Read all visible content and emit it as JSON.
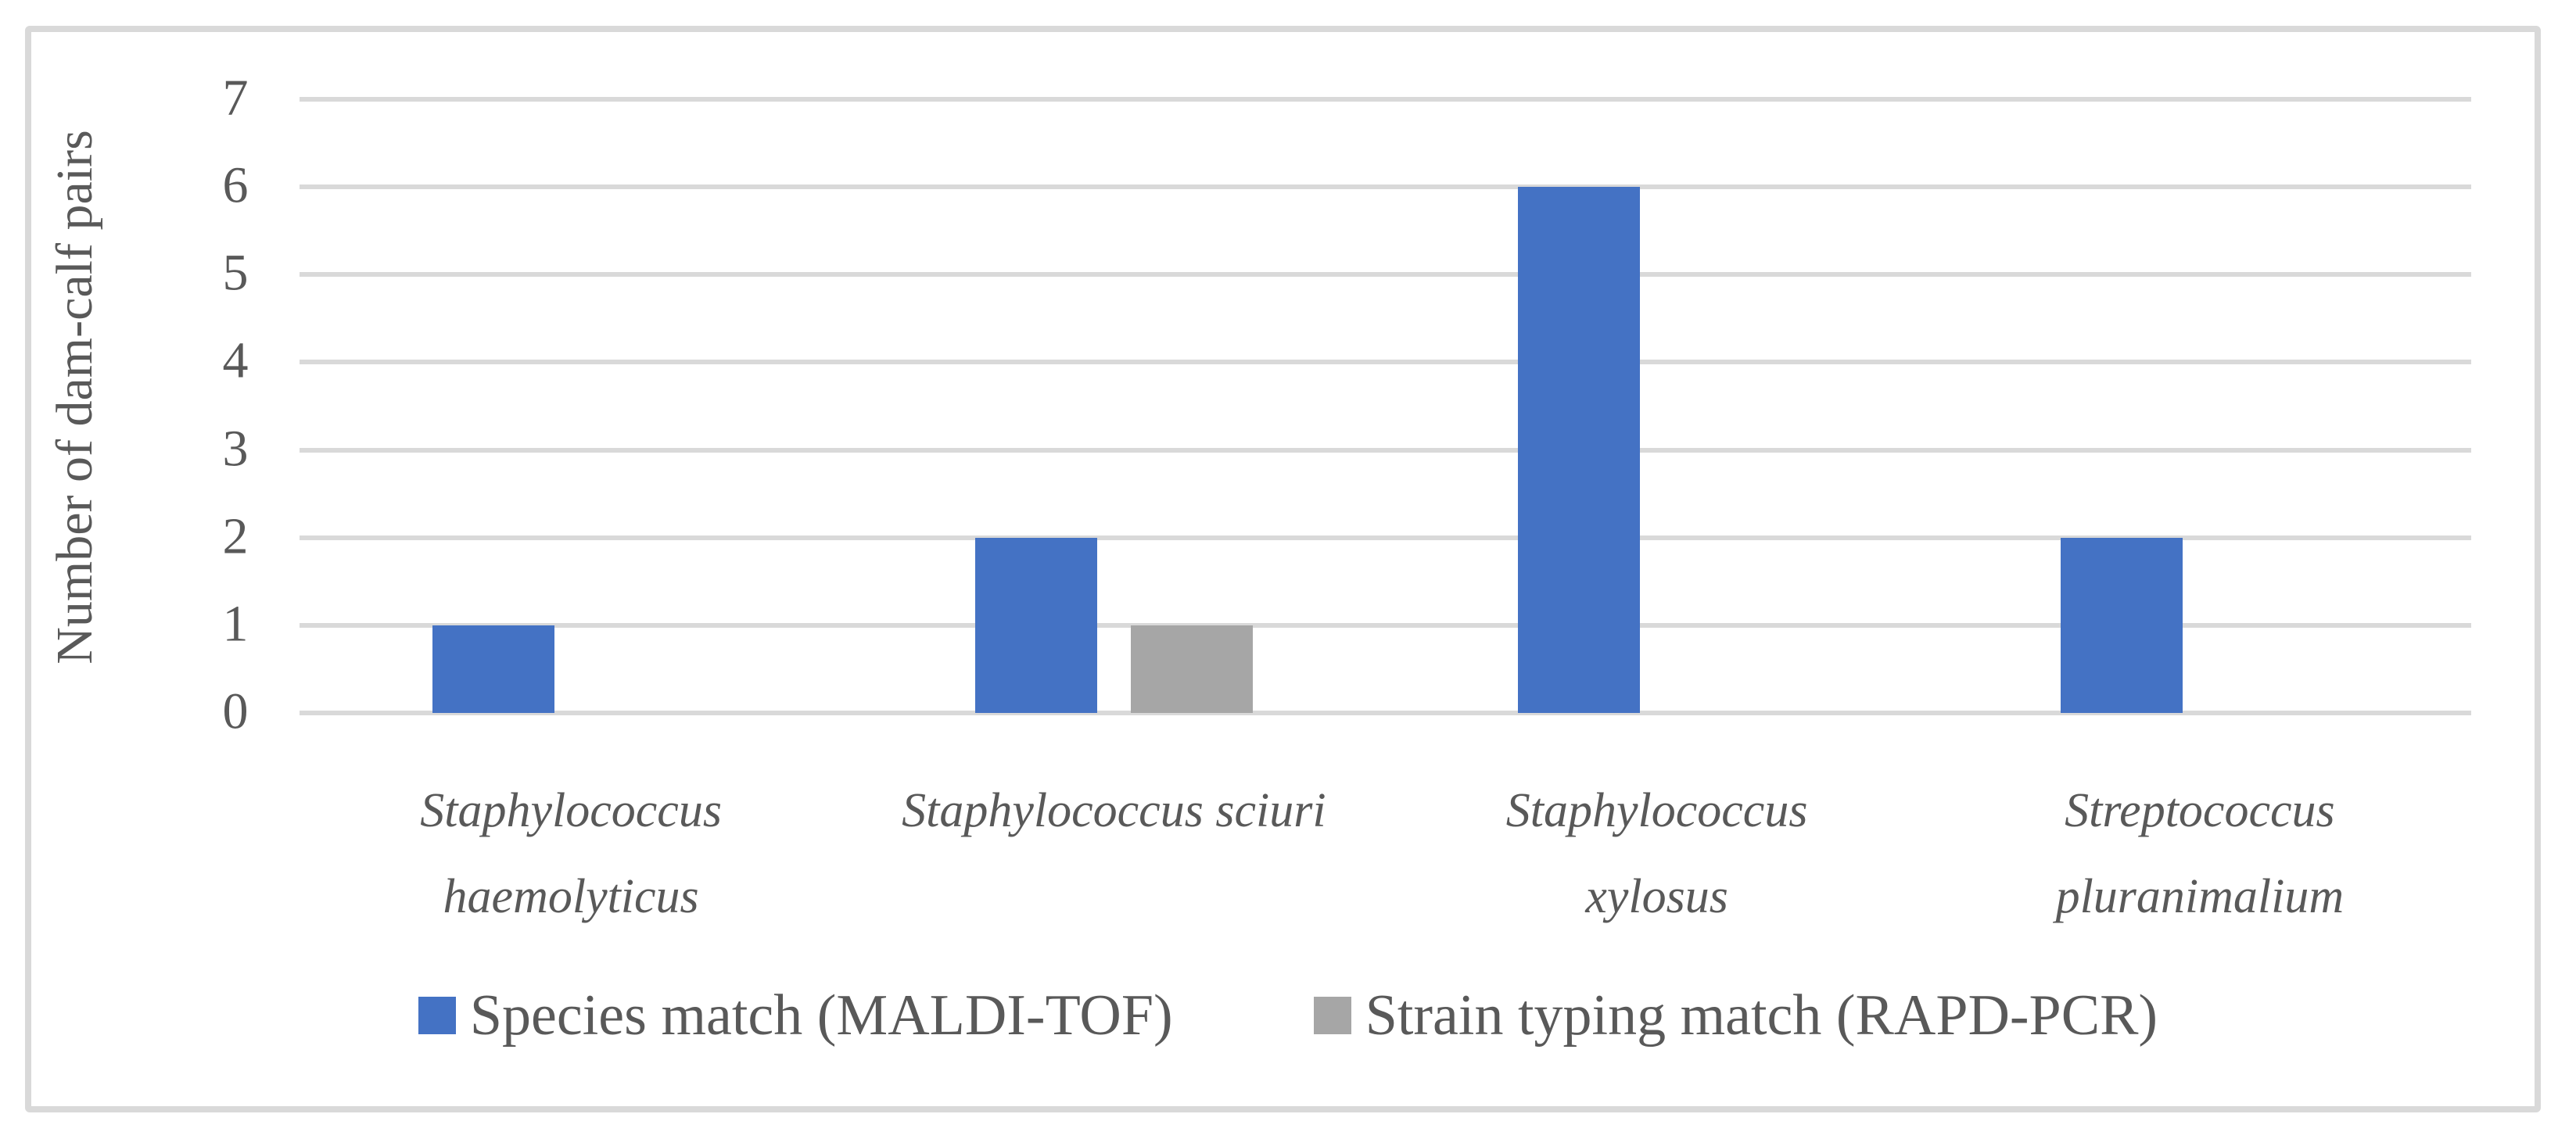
{
  "figure": {
    "background_color": "#FFFFFF",
    "border_color": "#D9D9D9",
    "text_color": "#595959"
  },
  "chart_data": {
    "type": "bar",
    "title": "",
    "xlabel": "",
    "ylabel": "Number of dam-calf pairs",
    "categories": [
      "Staphylococcus haemolyticus",
      "Staphylococcus sciuri",
      "Staphylococcus xylosus",
      "Streptococcus pluranimalium"
    ],
    "category_label_lines": [
      [
        "Staphylococcus",
        "haemolyticus"
      ],
      [
        "Staphylococcus sciuri"
      ],
      [
        "Staphylococcus",
        "xylosus"
      ],
      [
        "Streptococcus",
        "pluranimalium"
      ]
    ],
    "series": [
      {
        "name": "Species match (MALDI-TOF)",
        "color": "#4472C4",
        "values": [
          1,
          2,
          6,
          2
        ]
      },
      {
        "name": "Strain typing match (RAPD-PCR)",
        "color": "#A6A6A6",
        "values": [
          0,
          1,
          0,
          0
        ]
      }
    ],
    "ylim": [
      0,
      7
    ],
    "yticks": [
      0,
      1,
      2,
      3,
      4,
      5,
      6,
      7
    ],
    "grid": true,
    "gridline_color": "#D9D9D9",
    "legend_position": "bottom",
    "category_labels_italic": true
  }
}
